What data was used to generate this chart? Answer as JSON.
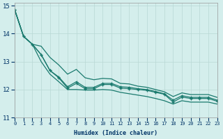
{
  "xlabel": "Humidex (Indice chaleur)",
  "ylabel": "",
  "background_color": "#d4eeec",
  "grid_color": "#b8d8d4",
  "line_color": "#1a7a6e",
  "xlim": [
    0,
    23
  ],
  "ylim": [
    11,
    15.1
  ],
  "xticks": [
    0,
    1,
    2,
    3,
    4,
    5,
    6,
    7,
    8,
    9,
    10,
    11,
    12,
    13,
    14,
    15,
    16,
    17,
    18,
    19,
    20,
    21,
    22,
    23
  ],
  "yticks": [
    11,
    12,
    13,
    14,
    15
  ],
  "series_with_markers": [
    [
      14.85,
      13.9,
      13.62,
      13.25,
      12.68,
      12.42,
      12.05,
      12.22,
      12.03,
      12.03,
      12.18,
      12.18,
      12.05,
      12.03,
      12.0,
      11.97,
      11.9,
      11.83,
      11.55,
      11.73,
      11.68,
      11.68,
      11.68,
      11.58
    ],
    [
      14.85,
      13.9,
      13.62,
      13.25,
      12.68,
      12.45,
      12.1,
      12.28,
      12.08,
      12.08,
      12.22,
      12.22,
      12.1,
      12.08,
      12.03,
      12.0,
      11.93,
      11.85,
      11.62,
      11.78,
      11.72,
      11.72,
      11.72,
      11.62
    ]
  ],
  "series_no_markers": [
    [
      14.85,
      13.9,
      13.62,
      13.0,
      12.55,
      12.28,
      12.0,
      12.0,
      11.98,
      11.98,
      12.0,
      11.98,
      11.9,
      11.85,
      11.8,
      11.75,
      11.68,
      11.6,
      11.48,
      11.6,
      11.55,
      11.55,
      11.55,
      11.48
    ],
    [
      14.85,
      13.9,
      13.62,
      13.55,
      13.15,
      12.88,
      12.55,
      12.72,
      12.42,
      12.35,
      12.4,
      12.38,
      12.22,
      12.2,
      12.12,
      12.08,
      12.0,
      11.92,
      11.75,
      11.88,
      11.82,
      11.82,
      11.82,
      11.72
    ]
  ],
  "marker": "+"
}
